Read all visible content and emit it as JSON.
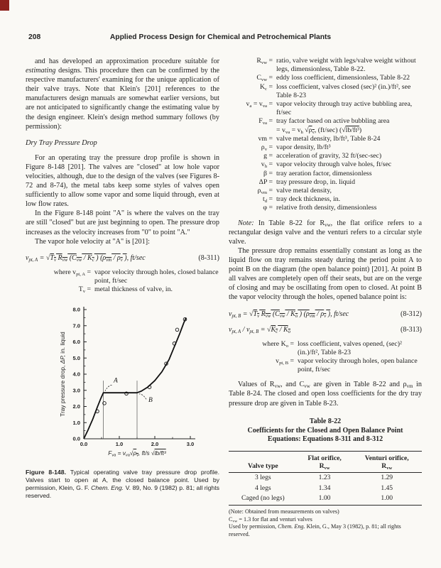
{
  "page": {
    "number": "208",
    "running_title": "Applied Process Design for Chemical and Petrochemical Plants"
  },
  "left_column": {
    "para1": "and has developed an approximation procedure suitable for *estimating* designs. This procedure then can be confirmed by the respective manufacturers' examining for the unique application of their valve trays. Note that Klein's [201] references to the manufacturers design manuals are somewhat earlier versions, but are not anticipated to significantly change the estimating value by the design engineer. Klein's design method summary follows (by permission):",
    "section_heading": "Dry Tray Pressure Drop",
    "para2": "For an operating tray the pressure drop profile is shown in Figure 8-148 [201]. The valves are \"closed\" at low hole vapor velocities, although, due to the design of the valves (see Figures 8-72 and 8-74), the metal tabs keep some styles of valves open sufficiently to allow some vapor and some liquid through, even at low flow rates.",
    "para3": "In the Figure 8-148 point \"A\" is where the valves on the tray are still \"closed\" but are just beginning to open. The pressure drop increases as the velocity increases from \"0\" to point \"A.\"",
    "para4": "The vapor hole velocity at \"A\" is [201]:",
    "eq_311": {
      "body": "v_{pt, A} = √{T_{v} R_{vw} (C_{vw} / K_{c} ) (ρ_{vm} / ρ_{v} )}, ft/sec",
      "number": "(8-311)"
    },
    "where_311": [
      {
        "term": "where v_{pt, A}",
        "desc": "vapor velocity through holes, closed balance point, ft/sec"
      },
      {
        "term": "T_{v}",
        "desc": "metal thickness of valve, in."
      }
    ],
    "figure_caption": {
      "label": "Figure 8-148.",
      "text": "Typical operating valve tray pressure drop profile. Valves start to open at A, the closed balance point. Used by permission, Klein, G. F. *Chem. Eng.* V. 89, No. 9 (1982) p. 81; all rights reserved."
    }
  },
  "right_column": {
    "definitions": [
      {
        "term": "R_{vw}",
        "lines": [
          "ratio, valve weight with legs/valve weight without legs, dimensionless, Table 8-22."
        ]
      },
      {
        "term": "C_{vw}",
        "lines": [
          "eddy loss coefficient, dimensionless, Table 8-22"
        ]
      },
      {
        "term": "K_{c}",
        "lines": [
          "loss coefficient, valves closed (sec)² (in.)/ft², see Table 8-23"
        ]
      },
      {
        "term": "v_{a} = v_{va}",
        "lines": [
          "vapor velocity through tray active bubbling area, ft/sec"
        ]
      },
      {
        "term": "F_{va}",
        "lines": [
          "tray factor based on active bubbling area",
          "= v_{va} = v_{h} √{ρ_{v}}, (ft/sec) (√{lb/ft³})"
        ]
      },
      {
        "term": "vm",
        "lines": [
          "valve metal density, lb/ft³, Table 8-24"
        ]
      },
      {
        "term": "ρ_{v}",
        "lines": [
          "vapor density, lb/ft³"
        ]
      },
      {
        "term": "g",
        "lines": [
          "acceleration of gravity, 32 ft/(sec-sec)"
        ]
      },
      {
        "term": "v_{h}",
        "lines": [
          "vapor velocity through valve holes, ft/sec"
        ]
      },
      {
        "term": "β",
        "lines": [
          "tray aeration factor, dimensionless"
        ]
      },
      {
        "term": "ΔP",
        "lines": [
          "tray pressure drop, in. liquid"
        ]
      },
      {
        "term": "ρ_{vm}",
        "lines": [
          "valve metal density,"
        ]
      },
      {
        "term": "t_{d}",
        "lines": [
          "tray deck thickness, in."
        ]
      },
      {
        "term": "φ",
        "lines": [
          "relative froth density, dimensionless"
        ]
      }
    ],
    "note_para": "*Note:* In Table 8-22 for R_{vw}, the flat orifice refers to a rectangular design valve and the venturi refers to a circular style valve.",
    "para_b": "The pressure drop remains essentially constant as long as the liquid flow on tray remains steady during the period point A to point B on the diagram (the open balance point) [201]. At point B all valves are completely open off their seats, but are on the verge of closing and may be oscillating from open to closed. At point B the vapor velocity through the holes, opened balance point is:",
    "eq_312": {
      "body": "v_{pt, B} = √{T_{v} R_{vw} (C_{vw} / K_{o} ) (ρ_{vm} / ρ_{v} )}, ft/sec",
      "number": "(8-312)"
    },
    "eq_313": {
      "body": "v_{pt, A} / v_{pt, B} = √{K_{c} / K_{o}}",
      "number": "(8-313)"
    },
    "where_313": [
      {
        "term": "where K_{o}",
        "desc": "loss coefficient, valves opened, (sec)² (in.)/ft², Table 8-23"
      },
      {
        "term": "v_{pt, B}",
        "desc": "vapor velocity through holes, open balance point, ft/sec"
      }
    ],
    "para_c": "Values of R_{vw}, and C_{vw} are given in Table 8-22 and ρ_{vm} in Table 8-24. The closed and open loss coefficients for the dry tray pressure drop are given in Table 8-23.",
    "table": {
      "title1": "Table 8-22",
      "title2": "Coefficients for the Closed and Open Balance Point",
      "title3": "Equations: Equations 8-311 and 8-312",
      "headers": [
        [
          "Valve type"
        ],
        [
          "Flat orifice,",
          "R_{vw}"
        ],
        [
          "Venturi orifice,",
          "R_{vw}"
        ]
      ],
      "rows": [
        [
          "3 legs",
          "1.23",
          "1.29"
        ],
        [
          "4 legs",
          "1.34",
          "1.45"
        ],
        [
          "Caged (no legs)",
          "1.00",
          "1.00"
        ]
      ],
      "notes": [
        "(Note: Obtained from measurements on valves)",
        "C_{vw} = 1.3 for flat and venturi valves",
        "Used by permission, *Chem. Eng.* Klein, G., May 3 (1982), p. 81; all rights reserved."
      ]
    }
  },
  "chart_data": {
    "type": "line",
    "title": "",
    "xlabel": "F_{va} = v_{va}√{ρ_{v}}, ft/s √{lb/ft³}",
    "ylabel": "Tray pressure drop, *ΔP,* in. liquid",
    "xlim": [
      0,
      3
    ],
    "ylim": [
      0,
      8
    ],
    "x_major_ticks": [
      0,
      1,
      2,
      3
    ],
    "x_tick_labels": [
      "0.0",
      "1.0",
      "2.0",
      "3.0"
    ],
    "x_minor_ticks": [
      0.5,
      1.5,
      2.5
    ],
    "y_major_ticks": [
      0,
      1,
      2,
      3,
      4,
      5,
      6,
      7,
      8
    ],
    "y_tick_labels": [
      "0.0",
      "1.0",
      "2.0",
      "3.0",
      "4.0",
      "5.0",
      "6.0",
      "7.0",
      "8.0"
    ],
    "y_minor_ticks": [
      0.5,
      1.5,
      2.5,
      3.5,
      4.5,
      5.5,
      6.5,
      7.5
    ],
    "curve_points": [
      [
        0,
        0
      ],
      [
        0.12,
        0.55
      ],
      [
        0.25,
        1.2
      ],
      [
        0.38,
        1.95
      ],
      [
        0.48,
        2.5
      ],
      [
        0.55,
        2.85
      ],
      [
        1.5,
        2.85
      ],
      [
        1.62,
        2.95
      ],
      [
        1.8,
        3.2
      ],
      [
        2.0,
        3.6
      ],
      [
        2.2,
        4.15
      ],
      [
        2.4,
        4.9
      ],
      [
        2.55,
        5.7
      ],
      [
        2.7,
        6.5
      ],
      [
        2.82,
        7.2
      ],
      [
        2.88,
        7.5
      ]
    ],
    "scatter_points": [
      [
        0.38,
        1.7
      ],
      [
        0.58,
        2.2
      ],
      [
        1.2,
        2.8
      ],
      [
        1.85,
        3.2
      ],
      [
        2.32,
        4.65
      ],
      [
        2.55,
        5.9
      ],
      [
        2.63,
        6.75
      ],
      [
        2.85,
        7.4
      ]
    ],
    "guide_lines": [
      {
        "x": 0.55,
        "y_top": 3.6
      },
      {
        "x": 1.5,
        "y_top": 3.6
      }
    ],
    "annotations": [
      {
        "label": "A",
        "label_x": 0.84,
        "label_y": 3.5,
        "leader_from": [
          0.79,
          3.32
        ],
        "leader_to": [
          0.6,
          2.97
        ]
      },
      {
        "label": "B",
        "label_x": 1.82,
        "label_y": 2.28,
        "leader_from": [
          1.76,
          2.45
        ],
        "leader_to": [
          1.56,
          2.78
        ]
      }
    ]
  }
}
